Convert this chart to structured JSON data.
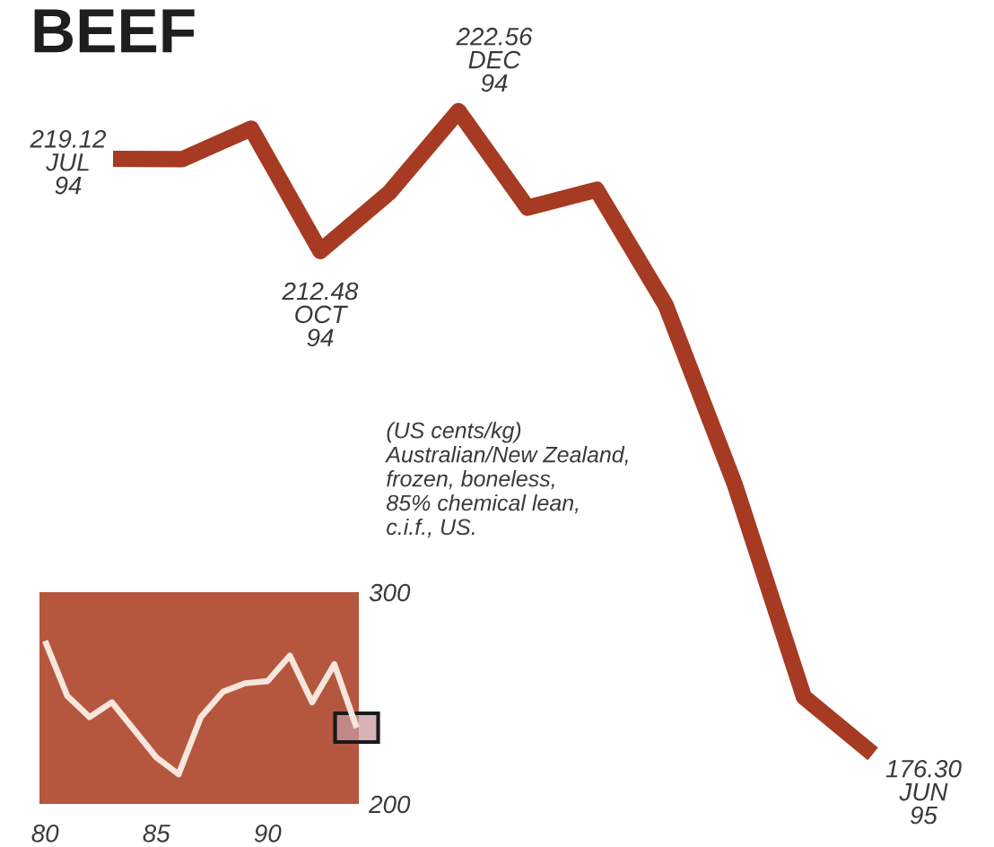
{
  "chart_data": [
    {
      "type": "line",
      "title": "BEEF",
      "categories": [
        null,
        null,
        null,
        null,
        null,
        null,
        null,
        null,
        null,
        null,
        null,
        null
      ],
      "series": [
        {
          "color": "#a63a22",
          "values": [
            219.12,
            219.1,
            221.3,
            212.48,
            216.7,
            222.56,
            215.6,
            216.9,
            208.6,
            195.7,
            180.4,
            176.3
          ],
          "value_labels": [
            "219.12\nJUL\n94",
            null,
            null,
            "212.48\nOCT\n94",
            null,
            "222.56\nDEC\n94",
            null,
            null,
            null,
            null,
            null,
            "176.30\nJUN\n95"
          ]
        }
      ],
      "annotations": [
        "(US cents/kg)\nAustralian/New Zealand,\nfrozen, boneless,\n85% chemical lean,\nc.i.f., US."
      ]
    },
    {
      "type": "line",
      "x": [
        80,
        81,
        82,
        83,
        84,
        85,
        86,
        87,
        88,
        89,
        90,
        91,
        92,
        93,
        94
      ],
      "series": [
        {
          "color": "#f6e6dc",
          "values": [
            277,
            251,
            241,
            248,
            235,
            222,
            214,
            241,
            253,
            257,
            258,
            270,
            248,
            266,
            236
          ]
        }
      ],
      "xlim": [
        79.75,
        94.1
      ],
      "ylim": [
        200,
        300
      ],
      "xticks": [
        80,
        85,
        90
      ],
      "yticks": [
        200,
        300
      ]
    }
  ]
}
